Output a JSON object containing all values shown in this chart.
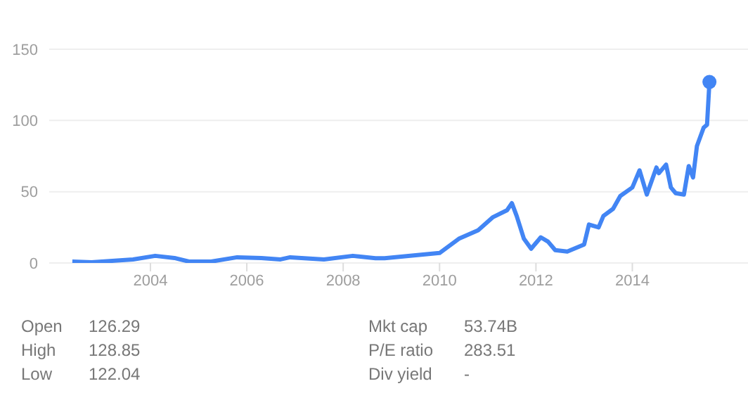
{
  "chart_data": {
    "type": "line",
    "x": [
      2002.38,
      2002.78,
      2003.64,
      2004.1,
      2004.5,
      2004.8,
      2005.26,
      2005.8,
      2006.3,
      2006.7,
      2006.9,
      2007.6,
      2008.2,
      2008.67,
      2008.86,
      2010.0,
      2010.4,
      2010.8,
      2011.1,
      2011.4,
      2011.5,
      2011.6,
      2011.75,
      2011.9,
      2012.1,
      2012.25,
      2012.4,
      2012.65,
      2013.0,
      2013.1,
      2013.3,
      2013.4,
      2013.6,
      2013.75,
      2014.0,
      2014.15,
      2014.3,
      2014.5,
      2014.55,
      2014.7,
      2014.8,
      2014.9,
      2015.07,
      2015.17,
      2015.26,
      2015.34,
      2015.48,
      2015.55,
      2015.6
    ],
    "series": [
      {
        "color": "#4285f4",
        "values": [
          1,
          0.5,
          2.5,
          5,
          3.5,
          1,
          1,
          4,
          3.5,
          2.5,
          4,
          2.5,
          5,
          3.3,
          3.3,
          7,
          17,
          23,
          32,
          37,
          42,
          33,
          17,
          10,
          18,
          15,
          9,
          8,
          13,
          27,
          25,
          33,
          38,
          47,
          53,
          65,
          48,
          67,
          63,
          69,
          53,
          49,
          48,
          68,
          60,
          82,
          95,
          97,
          127
        ]
      },
      {
        "type": "scatter",
        "color": "#4285f4",
        "x": [
          2015.6
        ],
        "values": [
          127
        ]
      }
    ],
    "xlim": [
      2001.9,
      2016.4
    ],
    "xticks": [
      2004,
      2006,
      2008,
      2010,
      2012,
      2014
    ],
    "ylim": [
      0,
      150
    ],
    "yticks": [
      0,
      50,
      100,
      150
    ],
    "grid": "y",
    "legend": false,
    "annotations": [
      "Open",
      "126.29",
      "Mkt cap",
      "53.74B",
      "High",
      "128.85",
      "P/E ratio",
      "283.51",
      "Low",
      "122.04",
      "Div yield",
      "-"
    ]
  }
}
